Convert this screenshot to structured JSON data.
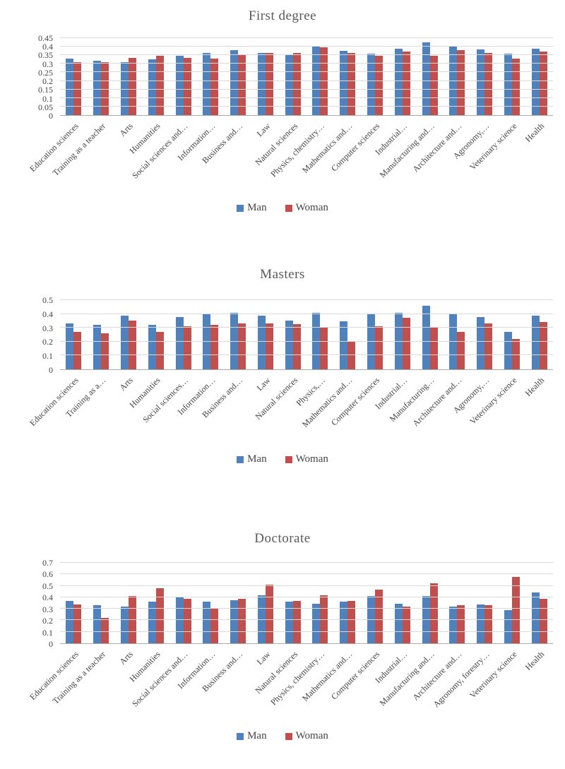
{
  "chart_data": [
    {
      "type": "bar",
      "title": "First degree",
      "xlabel": "",
      "ylabel": "",
      "ylim": [
        0,
        0.45
      ],
      "yticks": [
        "0.45",
        "0.4",
        "0.35",
        "0.3",
        "0.25",
        "0.2",
        "0.15",
        "0.1",
        "0.05",
        "0"
      ],
      "grid": true,
      "legend_position": "bottom",
      "categories": [
        "Education sciences",
        "Training as a teacher",
        "Arts",
        "Humanities",
        "Social sciences and…",
        "Information…",
        "Business and…",
        "Law",
        "Natural sciences",
        "Physics, chemistry…",
        "Mathematics and…",
        "Computer sciences",
        "Industrial…",
        "Manufacturing and…",
        "Architecture and…",
        "Agronomy,…",
        "Veterinary science",
        "Health"
      ],
      "series": [
        {
          "name": "Man",
          "color": "#4F81BD",
          "values": [
            0.33,
            0.32,
            0.31,
            0.325,
            0.345,
            0.365,
            0.38,
            0.365,
            0.35,
            0.405,
            0.375,
            0.36,
            0.39,
            0.425,
            0.4,
            0.385,
            0.36,
            0.39
          ]
        },
        {
          "name": "Woman",
          "color": "#C0504D",
          "values": [
            0.31,
            0.31,
            0.335,
            0.345,
            0.335,
            0.33,
            0.35,
            0.365,
            0.365,
            0.395,
            0.365,
            0.345,
            0.37,
            0.345,
            0.38,
            0.365,
            0.33,
            0.37
          ]
        }
      ]
    },
    {
      "type": "bar",
      "title": "Masters",
      "xlabel": "",
      "ylabel": "",
      "ylim": [
        0,
        0.5
      ],
      "yticks": [
        "0.5",
        "0.4",
        "0.3",
        "0.2",
        "0.1",
        "0"
      ],
      "grid": true,
      "legend_position": "bottom",
      "categories": [
        "Education sciences",
        "Training as a…",
        "Arts",
        "Humanities",
        "Social sciences…",
        "Information…",
        "Business and…",
        "Law",
        "Natural sciences",
        "Physics,…",
        "Mathematics and…",
        "Computer sciences",
        "Industrial…",
        "Manufacturing…",
        "Architecture and…",
        "Agronomy,…",
        "Veterinary science",
        "Health"
      ],
      "series": [
        {
          "name": "Man",
          "color": "#4F81BD",
          "values": [
            0.33,
            0.32,
            0.39,
            0.32,
            0.38,
            0.4,
            0.41,
            0.39,
            0.35,
            0.41,
            0.345,
            0.4,
            0.41,
            0.46,
            0.4,
            0.38,
            0.27,
            0.39
          ]
        },
        {
          "name": "Woman",
          "color": "#C0504D",
          "values": [
            0.27,
            0.26,
            0.35,
            0.27,
            0.31,
            0.32,
            0.33,
            0.33,
            0.325,
            0.3,
            0.2,
            0.31,
            0.375,
            0.3,
            0.27,
            0.33,
            0.22,
            0.34
          ]
        }
      ]
    },
    {
      "type": "bar",
      "title": "Doctorate",
      "xlabel": "",
      "ylabel": "",
      "ylim": [
        0,
        0.7
      ],
      "yticks": [
        "0.7",
        "0.6",
        "0.5",
        "0.4",
        "0.3",
        "0.2",
        "0.1",
        "0"
      ],
      "grid": true,
      "legend_position": "bottom",
      "categories": [
        "Education sciences",
        "Training as a teacher",
        "Arts",
        "Humanities",
        "Social sciences and…",
        "Information…",
        "Business and…",
        "Law",
        "Natural sciences",
        "Physics, chemistry…",
        "Mathematics and…",
        "Computer sciences",
        "Industrial…",
        "Manufacturing and…",
        "Architecture and…",
        "Agronomy, forestry…",
        "Veterinary science",
        "Health"
      ],
      "series": [
        {
          "name": "Man",
          "color": "#4F81BD",
          "values": [
            0.37,
            0.33,
            0.32,
            0.36,
            0.4,
            0.36,
            0.375,
            0.415,
            0.36,
            0.345,
            0.36,
            0.41,
            0.345,
            0.41,
            0.32,
            0.34,
            0.29,
            0.44
          ]
        },
        {
          "name": "Woman",
          "color": "#C0504D",
          "values": [
            0.34,
            0.22,
            0.41,
            0.48,
            0.385,
            0.3,
            0.385,
            0.51,
            0.37,
            0.42,
            0.37,
            0.465,
            0.32,
            0.52,
            0.33,
            0.33,
            0.58,
            0.385
          ]
        }
      ]
    }
  ]
}
